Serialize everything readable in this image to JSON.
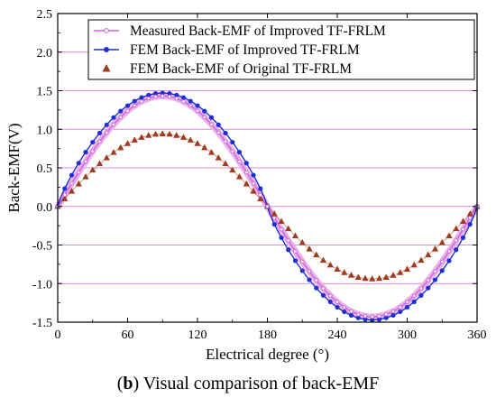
{
  "caption": {
    "letter": "b",
    "text": ") Visual comparison of back-EMF",
    "open": "("
  },
  "colors": {
    "grid": "#d98be0",
    "measured": "#cc66dd",
    "measured_band": "#e9a8e6",
    "fem_improved": "#1f2fd6",
    "fem_original": "#a23a1e"
  },
  "chart_data": {
    "type": "line",
    "xlabel": "Electrical degree (°)",
    "ylabel": "Back-EMF(V)",
    "xlim": [
      0,
      360
    ],
    "ylim": [
      -1.5,
      2.5
    ],
    "xticks": [
      "0",
      "60",
      "120",
      "180",
      "240",
      "300",
      "360"
    ],
    "yticks": [
      "-1.5",
      "-1.0",
      "-0.5",
      "0.0",
      "0.5",
      "1.0",
      "1.5",
      "2.0",
      "2.5"
    ],
    "grid": "horizontal",
    "legend_position": "top-right",
    "series": [
      {
        "name": "Measured Back-EMF of Improved TF-FRLM",
        "marker": "open-circle",
        "amplitude": 1.43,
        "x_start": 0,
        "x_end": 360,
        "x_step": 6,
        "points": "x/y = amplitude·sin(x)"
      },
      {
        "name": "FEM Back-EMF of Improved TF-FRLM",
        "marker": "filled-circle",
        "amplitude": 1.47,
        "x_start": 0,
        "x_end": 360,
        "x_step": 6,
        "points": "y = amplitude·sin(x) (flattened peak)"
      },
      {
        "name": "FEM Back-EMF of Original TF-FRLM",
        "marker": "triangle",
        "amplitude": 0.94,
        "x_start": 0,
        "x_end": 360,
        "x_step": 6,
        "points": "y = amplitude·sin(x)"
      }
    ]
  }
}
